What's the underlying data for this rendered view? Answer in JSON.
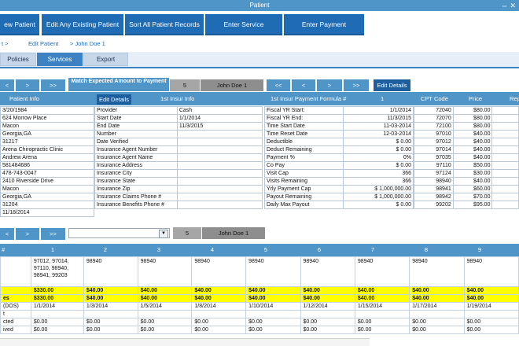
{
  "window": {
    "title": "Patient",
    "controls": "⇔ ✕"
  },
  "toolbar": {
    "buttons": [
      "ew Patient",
      "Edit Any Existing Patient",
      "Sort All Patient Records",
      "Enter Service",
      "Enter Payment"
    ]
  },
  "breadcrumb": {
    "items": [
      "t  >",
      "Edit Patient",
      ">  John Doe 1"
    ]
  },
  "tabs": {
    "items": [
      "Policies",
      "Services",
      "Export"
    ],
    "active": "Services"
  },
  "nav1": {
    "prev": "<",
    "next": ">",
    "last": ">>",
    "match_label": "Match Expected Amount to Payment",
    "page": "5",
    "patient": "John Doe 1",
    "right_first": "<<",
    "right_prev": "<",
    "right_next": ">",
    "right_last": ">>",
    "edit_details": "Edit Details"
  },
  "header1": {
    "patient_info": "Patient Info",
    "edit_details": "Edit Details",
    "insur_info": "1st Insur Info",
    "formula": "1st Insur Payment Formula #",
    "col_1": "1",
    "cpt_code": "CPT Code",
    "price": "Price",
    "rep": "Rep"
  },
  "patient_info": [
    "3/20/1984",
    "624 Morrow Place",
    "Macon",
    "Georgia,GA",
    "31217",
    "Arena Chiropractic Clinic",
    "Andrew  Arena",
    "581484686",
    "478-743-0047",
    "2410 Riverside Drive",
    "Macon",
    "Georgia,GA",
    "31204",
    "11/18/2014"
  ],
  "insur_info": [
    [
      "Provider",
      "Cash"
    ],
    [
      "Start Date",
      "1/1/2014"
    ],
    [
      "End Date",
      "11/3/2015"
    ],
    [
      "Number",
      ""
    ],
    [
      "Date Verified",
      ""
    ],
    [
      "Insurance Agent Number",
      ""
    ],
    [
      "Insurance Agent Name",
      ""
    ],
    [
      "Insurance Address",
      ""
    ],
    [
      "Insurance City",
      ""
    ],
    [
      "Insurance State",
      ""
    ],
    [
      "Insurance Zip",
      ""
    ],
    [
      "Insurance Claims Phone #",
      ""
    ],
    [
      "Insurance Benefits Phone #",
      ""
    ]
  ],
  "formula": [
    [
      "Fiscal YR Start:",
      "1/1/2014"
    ],
    [
      "Fiscal YR End:",
      "11/3/2015"
    ],
    [
      "Time Start Date",
      "11-03-2014"
    ],
    [
      "Time Reset Date",
      "12-03-2014"
    ],
    [
      "Deductible",
      "$ 0.00"
    ],
    [
      "Deduct Remaining",
      "$ 0.00"
    ],
    [
      "Payment %",
      "0%"
    ],
    [
      "Co Pay",
      "$ 0.00"
    ],
    [
      "Visit Cap",
      "366"
    ],
    [
      "Visits Remaining",
      "366"
    ],
    [
      "Yrly Payment Cap",
      "$ 1,000,000.00"
    ],
    [
      "Payout Remaining",
      "$ 1,000,000.00"
    ],
    [
      "Daily Max Payout",
      "$ 0.00"
    ]
  ],
  "cpt": [
    [
      "72040",
      "$80.00"
    ],
    [
      "72070",
      "$80.00"
    ],
    [
      "72100",
      "$80.00"
    ],
    [
      "97010",
      "$40.00"
    ],
    [
      "97012",
      "$40.00"
    ],
    [
      "97014",
      "$40.00"
    ],
    [
      "97035",
      "$40.00"
    ],
    [
      "97110",
      "$50.00"
    ],
    [
      "97124",
      "$30.00"
    ],
    [
      "98940",
      "$40.00"
    ],
    [
      "98941",
      "$60.00"
    ],
    [
      "98942",
      "$70.00"
    ],
    [
      "99202",
      "$95.00"
    ]
  ],
  "nav2": {
    "prev": "<",
    "next": ">",
    "last": ">>",
    "page": "5",
    "patient": "John Doe 1"
  },
  "lower": {
    "header": [
      "#",
      "1",
      "2",
      "3",
      "4",
      "5",
      "6",
      "7",
      "8",
      "9"
    ],
    "row_labels": [
      "",
      "",
      "es",
      "(DOS)",
      "t",
      "cted",
      "ived"
    ],
    "codes": [
      "97012, 97014, 97110, 98940, 98941, 99203",
      "98940",
      "98940",
      "98940",
      "98940",
      "98940",
      "98940",
      "98940",
      "98940"
    ],
    "amount_row1": [
      "$330.00",
      "$40.00",
      "$40.00",
      "$40.00",
      "$40.00",
      "$40.00",
      "$40.00",
      "$40.00",
      "$40.00"
    ],
    "amount_row2": [
      "$330.00",
      "$40.00",
      "$40.00",
      "$40.00",
      "$40.00",
      "$40.00",
      "$40.00",
      "$40.00",
      "$40.00"
    ],
    "dos": [
      "1/1/2014",
      "1/3/2014",
      "1/5/2014",
      "1/8/2014",
      "1/10/2014",
      "1/12/2014",
      "1/15/2014",
      "1/17/2014",
      "1/19/2014"
    ],
    "expected": [
      "$0.00",
      "$0.00",
      "$0.00",
      "$0.00",
      "$0.00",
      "$0.00",
      "$0.00",
      "$0.00",
      "$0.00"
    ],
    "received": [
      "$0.00",
      "$0.00",
      "$0.00",
      "$0.00",
      "$0.00",
      "$0.00",
      "$0.00",
      "$0.00",
      "$0.00"
    ]
  }
}
